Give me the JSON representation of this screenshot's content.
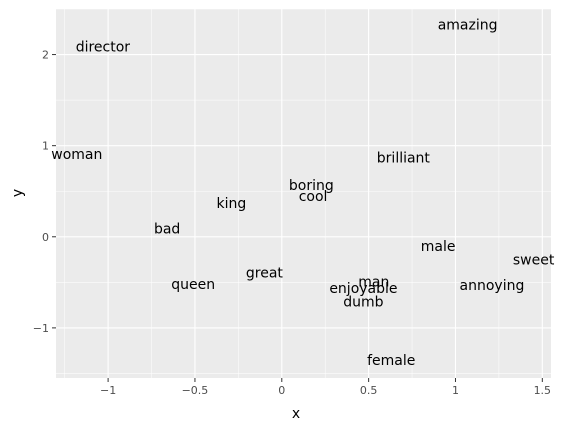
{
  "chart_data": {
    "type": "scatter",
    "xlabel": "x",
    "ylabel": "y",
    "xlim": [
      -1.3,
      1.55
    ],
    "ylim": [
      -1.55,
      2.5
    ],
    "x_ticks": [
      -1,
      -0.5,
      0,
      0.5,
      1,
      1.5
    ],
    "x_tick_labels": [
      "−1",
      "−0.5",
      "0",
      "0.5",
      "1",
      "1.5"
    ],
    "y_ticks": [
      -1,
      0,
      1,
      2
    ],
    "y_tick_labels": [
      "−1",
      "0",
      "1",
      "2"
    ],
    "grid": true,
    "points": [
      {
        "label": "amazing",
        "x": 1.07,
        "y": 2.33
      },
      {
        "label": "director",
        "x": -1.03,
        "y": 2.09
      },
      {
        "label": "woman",
        "x": -1.18,
        "y": 0.91
      },
      {
        "label": "brilliant",
        "x": 0.7,
        "y": 0.87
      },
      {
        "label": "boring",
        "x": 0.17,
        "y": 0.57
      },
      {
        "label": "cool",
        "x": 0.18,
        "y": 0.45
      },
      {
        "label": "king",
        "x": -0.29,
        "y": 0.37
      },
      {
        "label": "bad",
        "x": -0.66,
        "y": 0.09
      },
      {
        "label": "male",
        "x": 0.9,
        "y": -0.1
      },
      {
        "label": "sweet",
        "x": 1.45,
        "y": -0.25
      },
      {
        "label": "great",
        "x": -0.1,
        "y": -0.39
      },
      {
        "label": "queen",
        "x": -0.51,
        "y": -0.52
      },
      {
        "label": "man",
        "x": 0.53,
        "y": -0.49
      },
      {
        "label": "enjoyable",
        "x": 0.47,
        "y": -0.56
      },
      {
        "label": "annoying",
        "x": 1.21,
        "y": -0.53
      },
      {
        "label": "dumb",
        "x": 0.47,
        "y": -0.71
      },
      {
        "label": "female",
        "x": 0.63,
        "y": -1.35
      }
    ]
  }
}
